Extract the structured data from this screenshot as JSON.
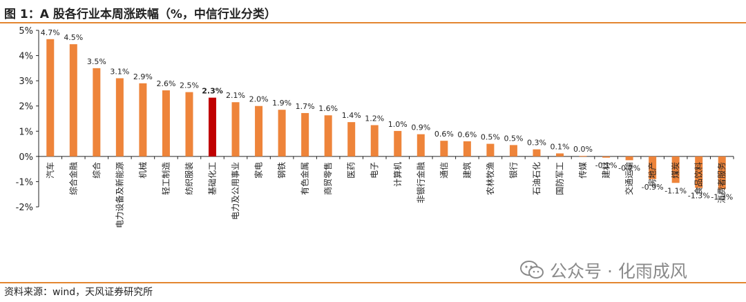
{
  "title": "图 1：A 股各行业本周涨跌幅（%，中信行业分类）",
  "source": "资料来源：wind，天风证券研究所",
  "watermark": {
    "icon": "wechat-icon",
    "text": "公众号 · 化雨成风"
  },
  "colors": {
    "bar": "#ee843a",
    "highlight": "#c00000",
    "accent": "#e3852f",
    "axis": "#222222"
  },
  "chart_data": {
    "type": "bar",
    "title": "图 1：A 股各行业本周涨跌幅（%，中信行业分类）",
    "xlabel": "",
    "ylabel": "",
    "ylim": [
      -2,
      5
    ],
    "yticks": [
      "5%",
      "4%",
      "3%",
      "2%",
      "1%",
      "0%",
      "-1%",
      "-2%"
    ],
    "ytick_values": [
      5,
      4,
      3,
      2,
      1,
      0,
      -1,
      -2
    ],
    "grid": false,
    "highlight": "基础化工",
    "categories": [
      "汽车",
      "综合金融",
      "综合",
      "电力设备及新能源",
      "机械",
      "轻工制造",
      "纺织服装",
      "基础化工",
      "电力及公用事业",
      "家电",
      "钢铁",
      "有色金属",
      "商贸零售",
      "医药",
      "电子",
      "计算机",
      "非银行金融",
      "通信",
      "建筑",
      "农林牧渔",
      "银行",
      "石油石化",
      "国防军工",
      "传媒",
      "建材",
      "交通运输",
      "房地产",
      "煤炭",
      "食品饮料",
      "消费者服务"
    ],
    "values": [
      4.65,
      4.45,
      3.5,
      3.1,
      2.9,
      2.62,
      2.55,
      2.33,
      2.15,
      2.0,
      1.85,
      1.72,
      1.63,
      1.36,
      1.24,
      1.01,
      0.88,
      0.62,
      0.6,
      0.5,
      0.45,
      0.28,
      0.12,
      0.02,
      -0.05,
      -0.15,
      -0.9,
      -1.05,
      -1.25,
      -1.3
    ],
    "labels": [
      "4.7%",
      "4.5%",
      "3.5%",
      "3.1%",
      "2.9%",
      "2.6%",
      "2.5%",
      "2.3%",
      "2.1%",
      "2.0%",
      "1.9%",
      "1.7%",
      "1.6%",
      "1.4%",
      "1.2%",
      "1.0%",
      "0.9%",
      "0.6%",
      "0.6%",
      "0.5%",
      "0.5%",
      "0.3%",
      "0.1%",
      "0.0%",
      "-0.1%",
      "-0.2%",
      "-0.9%",
      "-1.1%",
      "-1.3%",
      "-1.3%"
    ]
  }
}
